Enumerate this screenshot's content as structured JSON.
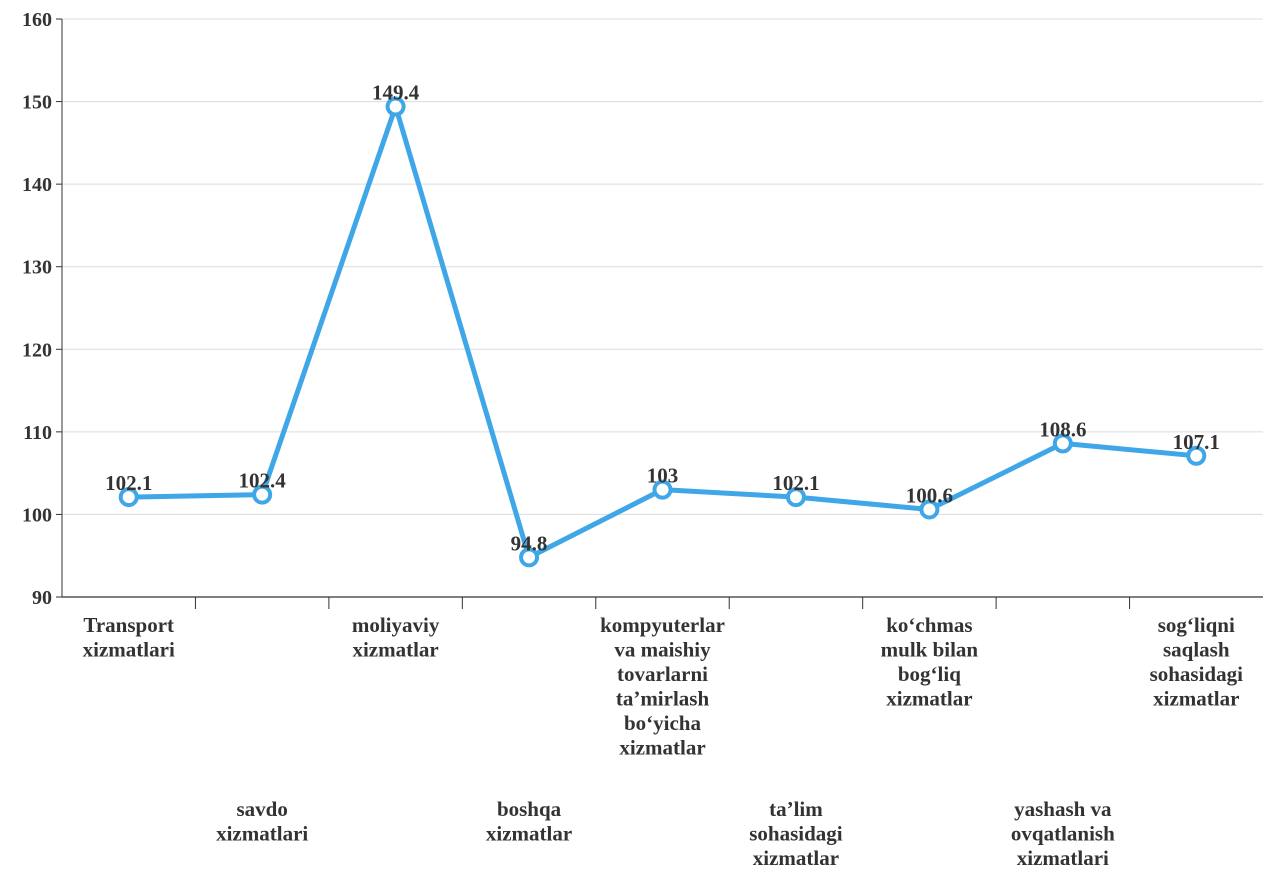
{
  "chart_data": {
    "type": "line",
    "categories": [
      [
        "Transport",
        "xizmatlari"
      ],
      [
        "savdo",
        "xizmatlari"
      ],
      [
        "moliyaviy",
        "xizmatlar"
      ],
      [
        "boshqa",
        "xizmatlar"
      ],
      [
        "kompyuterlar",
        "va maishiy",
        "tovarlarni",
        "ta’mirlash",
        "bo‘yicha",
        "xizmatlar"
      ],
      [
        "ta’lim",
        "sohasidagi",
        "xizmatlar"
      ],
      [
        "ko‘chmas",
        "mulk bilan",
        "bog‘liq",
        "xizmatlar"
      ],
      [
        "yashash va",
        "ovqatlanish",
        "xizmatlari"
      ],
      [
        "sog‘liqni",
        "saqlash",
        "sohasidagi",
        "xizmatlar"
      ]
    ],
    "series": [
      {
        "values": [
          102.1,
          102.4,
          149.4,
          94.8,
          103,
          102.1,
          100.6,
          108.6,
          107.1
        ],
        "labels": [
          "102.1",
          "102.4",
          "149.4",
          "94.8",
          "103",
          "102.1",
          "100.6",
          "108.6",
          "107.1"
        ],
        "color": "#3fa6e8"
      }
    ],
    "yticks": [
      "90",
      "100",
      "110",
      "120",
      "130",
      "140",
      "150",
      "160"
    ],
    "ylim": [
      90,
      160
    ],
    "grid": true,
    "title": "",
    "xlabel": "",
    "ylabel": ""
  }
}
